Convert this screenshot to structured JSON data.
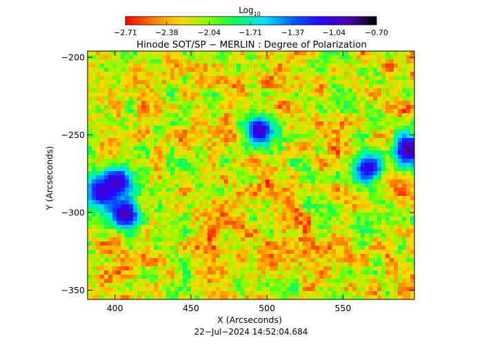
{
  "chart_data": {
    "type": "heatmap",
    "title": "Hinode SOT/SP − MERLIN : Degree of Polarization",
    "xlabel": "X (Arcseconds)",
    "ylabel": "Y (Arcseconds)",
    "timestamp": "22−Jul−2024 14:52:04.684",
    "xlim": [
      382,
      597
    ],
    "ylim": [
      -356,
      -196
    ],
    "xticks": [
      400,
      450,
      500,
      550
    ],
    "xtick_labels": [
      "400",
      "450",
      "500",
      "550"
    ],
    "yticks": [
      -200,
      -250,
      -300,
      -350
    ],
    "ytick_labels": [
      "−200",
      "−250",
      "−300",
      "−350"
    ],
    "colorbar": {
      "label_base": "Log",
      "label_sub": "10",
      "range": [
        -2.71,
        -0.7
      ],
      "ticks": [
        -2.71,
        -2.38,
        -2.04,
        -1.71,
        -1.37,
        -1.04,
        -0.7
      ],
      "tick_labels": [
        "−2.71",
        "−2.38",
        "−2.04",
        "−1.71",
        "−1.37",
        "−1.04",
        "−0.70"
      ],
      "colormap": [
        "#ff0000",
        "#ff8000",
        "#ffd800",
        "#80ff00",
        "#00ff60",
        "#00e0ff",
        "#0060ff",
        "#2a00ff",
        "#5000b0",
        "#000000"
      ]
    },
    "features": [
      {
        "name": "pore-cluster-left",
        "x": 390,
        "y": -286,
        "log_value": -0.95
      },
      {
        "name": "pore-left-main",
        "x": 405,
        "y": -300,
        "log_value": -0.85
      },
      {
        "name": "pore-left-small",
        "x": 400,
        "y": -279,
        "log_value": -0.9
      },
      {
        "name": "pore-center",
        "x": 494,
        "y": -246,
        "log_value": -0.88
      },
      {
        "name": "pore-right-edge",
        "x": 592,
        "y": -258,
        "log_value": -0.8
      },
      {
        "name": "pore-mid-right",
        "x": 565,
        "y": -270,
        "log_value": -1.0
      }
    ],
    "grid": false,
    "legend": "none"
  }
}
